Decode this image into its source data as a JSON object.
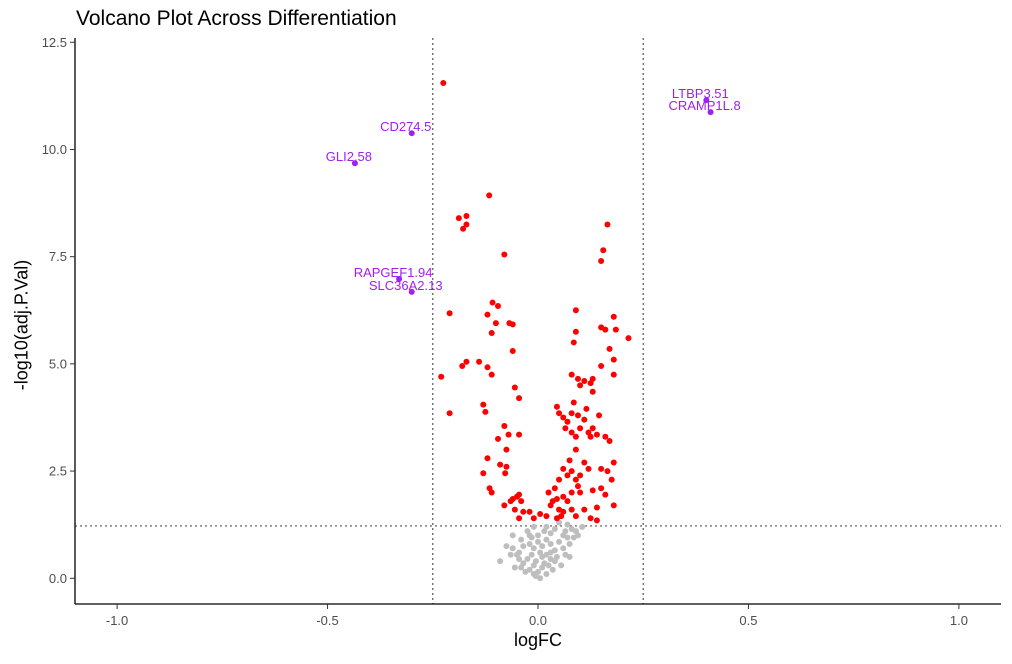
{
  "chart_data": {
    "type": "scatter",
    "title": "Volcano Plot Across Differentiation",
    "xlabel": "logFC",
    "ylabel": "-log10(adj.P.Val)",
    "xlim": [
      -1.1,
      1.1
    ],
    "ylim": [
      -0.6,
      12.6
    ],
    "xticks": [
      -1.0,
      -0.5,
      0.0,
      0.5,
      1.0
    ],
    "xtick_labels": [
      "-1.0",
      "-0.5",
      "0.0",
      "0.5",
      "1.0"
    ],
    "yticks": [
      0.0,
      2.5,
      5.0,
      7.5,
      10.0,
      12.5
    ],
    "ytick_labels": [
      "0.0",
      "2.5",
      "5.0",
      "7.5",
      "10.0",
      "12.5"
    ],
    "grid": false,
    "thresholds": {
      "logFC": [
        -0.25,
        0.25
      ],
      "neglog10p": 1.22
    },
    "colors": {
      "significant": "#ff0000",
      "not_significant": "#bebebe",
      "labeled": "#a020f0",
      "threshold_line": "#555555"
    },
    "labeled_points": [
      {
        "label": "LTBP3.51",
        "x": 0.4,
        "y": 11.15
      },
      {
        "label": "CRAMP1L.8",
        "x": 0.41,
        "y": 10.87
      },
      {
        "label": "CD274.5",
        "x": -0.3,
        "y": 10.38
      },
      {
        "label": "GLI2.58",
        "x": -0.435,
        "y": 9.68
      },
      {
        "label": "RAPGEF1.94",
        "x": -0.33,
        "y": 6.98
      },
      {
        "label": "SLC36A2.13",
        "x": -0.3,
        "y": 6.68
      }
    ],
    "significant_points": [
      [
        -0.225,
        11.55
      ],
      [
        -0.116,
        8.93
      ],
      [
        -0.17,
        8.45
      ],
      [
        -0.188,
        8.4
      ],
      [
        -0.17,
        8.25
      ],
      [
        -0.178,
        8.15
      ],
      [
        -0.08,
        7.55
      ],
      [
        -0.21,
        6.18
      ],
      [
        -0.108,
        6.43
      ],
      [
        -0.095,
        6.35
      ],
      [
        -0.12,
        6.15
      ],
      [
        -0.1,
        5.95
      ],
      [
        -0.068,
        5.95
      ],
      [
        -0.06,
        5.92
      ],
      [
        -0.11,
        5.72
      ],
      [
        -0.14,
        5.05
      ],
      [
        -0.17,
        5.05
      ],
      [
        -0.18,
        4.95
      ],
      [
        -0.12,
        4.92
      ],
      [
        -0.06,
        5.3
      ],
      [
        -0.23,
        4.7
      ],
      [
        -0.11,
        4.75
      ],
      [
        -0.055,
        4.45
      ],
      [
        -0.045,
        4.2
      ],
      [
        -0.21,
        3.85
      ],
      [
        -0.13,
        4.05
      ],
      [
        -0.125,
        3.88
      ],
      [
        -0.08,
        3.55
      ],
      [
        -0.095,
        3.25
      ],
      [
        -0.07,
        3.35
      ],
      [
        -0.075,
        3.0
      ],
      [
        -0.045,
        3.35
      ],
      [
        -0.12,
        2.8
      ],
      [
        -0.09,
        2.65
      ],
      [
        -0.075,
        2.6
      ],
      [
        -0.078,
        2.45
      ],
      [
        -0.13,
        2.45
      ],
      [
        -0.115,
        2.1
      ],
      [
        -0.11,
        2.0
      ],
      [
        -0.065,
        1.8
      ],
      [
        -0.06,
        1.85
      ],
      [
        -0.045,
        1.95
      ],
      [
        -0.05,
        1.9
      ],
      [
        -0.055,
        1.6
      ],
      [
        -0.08,
        1.7
      ],
      [
        -0.04,
        1.8
      ],
      [
        -0.035,
        1.55
      ],
      [
        -0.045,
        1.4
      ],
      [
        -0.02,
        1.55
      ],
      [
        -0.01,
        1.4
      ],
      [
        0.005,
        1.5
      ],
      [
        0.02,
        1.45
      ],
      [
        0.03,
        1.7
      ],
      [
        0.035,
        1.8
      ],
      [
        0.045,
        1.85
      ],
      [
        0.05,
        1.6
      ],
      [
        0.055,
        1.45
      ],
      [
        0.06,
        1.55
      ],
      [
        0.07,
        1.8
      ],
      [
        0.08,
        1.6
      ],
      [
        0.09,
        1.45
      ],
      [
        0.11,
        1.6
      ],
      [
        0.125,
        1.4
      ],
      [
        0.14,
        1.35
      ],
      [
        0.045,
        1.4
      ],
      [
        0.025,
        2.0
      ],
      [
        0.04,
        2.1
      ],
      [
        0.08,
        2.0
      ],
      [
        0.06,
        1.9
      ],
      [
        0.095,
        2.15
      ],
      [
        0.1,
        2.0
      ],
      [
        0.13,
        2.05
      ],
      [
        0.15,
        2.1
      ],
      [
        0.14,
        1.65
      ],
      [
        0.16,
        1.95
      ],
      [
        0.18,
        1.7
      ],
      [
        0.05,
        2.3
      ],
      [
        0.07,
        2.4
      ],
      [
        0.08,
        2.5
      ],
      [
        0.09,
        2.3
      ],
      [
        0.1,
        2.4
      ],
      [
        0.06,
        2.55
      ],
      [
        0.075,
        2.75
      ],
      [
        0.09,
        3.0
      ],
      [
        0.11,
        2.7
      ],
      [
        0.12,
        2.55
      ],
      [
        0.15,
        2.55
      ],
      [
        0.165,
        2.5
      ],
      [
        0.18,
        2.7
      ],
      [
        0.175,
        2.3
      ],
      [
        0.09,
        3.3
      ],
      [
        0.1,
        3.5
      ],
      [
        0.11,
        3.7
      ],
      [
        0.12,
        3.4
      ],
      [
        0.125,
        3.3
      ],
      [
        0.13,
        3.5
      ],
      [
        0.14,
        3.35
      ],
      [
        0.08,
        3.4
      ],
      [
        0.065,
        3.5
      ],
      [
        0.07,
        3.65
      ],
      [
        0.05,
        3.85
      ],
      [
        0.045,
        4.0
      ],
      [
        0.06,
        3.75
      ],
      [
        0.08,
        3.85
      ],
      [
        0.095,
        3.8
      ],
      [
        0.115,
        3.95
      ],
      [
        0.145,
        3.8
      ],
      [
        0.16,
        3.3
      ],
      [
        0.17,
        3.2
      ],
      [
        0.085,
        4.1
      ],
      [
        0.13,
        4.35
      ],
      [
        0.1,
        4.5
      ],
      [
        0.08,
        4.75
      ],
      [
        0.095,
        4.65
      ],
      [
        0.11,
        4.6
      ],
      [
        0.125,
        4.55
      ],
      [
        0.15,
        4.95
      ],
      [
        0.18,
        4.75
      ],
      [
        0.085,
        5.5
      ],
      [
        0.09,
        5.75
      ],
      [
        0.16,
        5.8
      ],
      [
        0.185,
        5.8
      ],
      [
        0.18,
        6.1
      ],
      [
        0.215,
        5.6
      ],
      [
        0.17,
        5.35
      ],
      [
        0.18,
        5.1
      ],
      [
        0.15,
        5.85
      ],
      [
        0.09,
        6.25
      ],
      [
        0.15,
        7.4
      ],
      [
        0.155,
        7.65
      ],
      [
        0.165,
        8.25
      ],
      [
        0.13,
        4.65
      ]
    ],
    "not_significant_points": [
      [
        -0.01,
        1.2
      ],
      [
        0.02,
        1.2
      ],
      [
        0.05,
        1.3
      ],
      [
        0.07,
        1.25
      ],
      [
        0.09,
        1.1
      ],
      [
        0.06,
        1.0
      ],
      [
        0.03,
        1.05
      ],
      [
        0.0,
        1.0
      ],
      [
        -0.02,
        1.0
      ],
      [
        -0.04,
        0.9
      ],
      [
        -0.035,
        0.75
      ],
      [
        -0.02,
        0.8
      ],
      [
        -0.01,
        0.7
      ],
      [
        0.0,
        0.85
      ],
      [
        0.01,
        0.75
      ],
      [
        0.02,
        0.9
      ],
      [
        0.03,
        0.8
      ],
      [
        0.04,
        0.65
      ],
      [
        0.05,
        0.85
      ],
      [
        0.06,
        0.7
      ],
      [
        0.075,
        0.8
      ],
      [
        0.085,
        0.95
      ],
      [
        0.065,
        0.55
      ],
      [
        0.045,
        0.5
      ],
      [
        0.03,
        0.45
      ],
      [
        0.02,
        0.55
      ],
      [
        0.01,
        0.5
      ],
      [
        0.005,
        0.6
      ],
      [
        -0.005,
        0.4
      ],
      [
        -0.015,
        0.55
      ],
      [
        -0.025,
        0.45
      ],
      [
        -0.035,
        0.35
      ],
      [
        -0.045,
        0.45
      ],
      [
        -0.05,
        0.55
      ],
      [
        -0.06,
        0.7
      ],
      [
        -0.065,
        0.55
      ],
      [
        -0.04,
        0.25
      ],
      [
        -0.02,
        0.2
      ],
      [
        -0.01,
        0.3
      ],
      [
        0.0,
        0.15
      ],
      [
        0.01,
        0.25
      ],
      [
        0.02,
        0.1
      ],
      [
        0.015,
        0.35
      ],
      [
        0.025,
        0.3
      ],
      [
        0.035,
        0.2
      ],
      [
        -0.005,
        0.05
      ],
      [
        0.005,
        0.0
      ],
      [
        -0.01,
        0.1
      ],
      [
        -0.03,
        0.15
      ],
      [
        -0.055,
        0.25
      ],
      [
        0.04,
        0.4
      ],
      [
        0.055,
        0.3
      ],
      [
        0.03,
        0.6
      ],
      [
        0.07,
        0.95
      ],
      [
        -0.015,
        0.95
      ],
      [
        0.095,
        1.0
      ],
      [
        0.08,
        1.15
      ],
      [
        0.04,
        1.15
      ],
      [
        -0.025,
        1.1
      ],
      [
        -0.06,
        1.0
      ],
      [
        -0.075,
        0.75
      ],
      [
        -0.09,
        0.4
      ],
      [
        0.075,
        0.5
      ],
      [
        -0.045,
        0.6
      ],
      [
        0.015,
        1.1
      ],
      [
        0.065,
        1.1
      ],
      [
        0.105,
        1.2
      ]
    ]
  }
}
